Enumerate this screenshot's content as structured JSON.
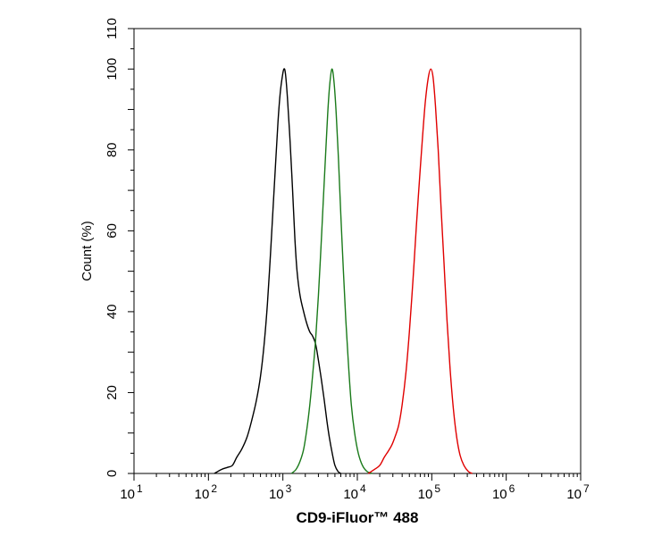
{
  "chart_data": {
    "type": "line",
    "xlabel": "CD9-iFluor™ 488",
    "ylabel": "Count  (%)",
    "x_scale": "log",
    "xlim": [
      10,
      10000000
    ],
    "ylim": [
      0,
      110
    ],
    "x_ticks": [
      {
        "value": 10,
        "base": "10",
        "exp": "1"
      },
      {
        "value": 100,
        "base": "10",
        "exp": "2"
      },
      {
        "value": 1000,
        "base": "10",
        "exp": "3"
      },
      {
        "value": 10000,
        "base": "10",
        "exp": "4"
      },
      {
        "value": 100000,
        "base": "10",
        "exp": "5"
      },
      {
        "value": 1000000,
        "base": "10",
        "exp": "6"
      },
      {
        "value": 10000000,
        "base": "10",
        "exp": "7"
      }
    ],
    "y_ticks": [
      {
        "value": 0,
        "label": "0"
      },
      {
        "value": 20,
        "label": "20"
      },
      {
        "value": 40,
        "label": "40"
      },
      {
        "value": 60,
        "label": "60"
      },
      {
        "value": 80,
        "label": "80"
      },
      {
        "value": 100,
        "label": "100"
      },
      {
        "value": 110,
        "label": "110"
      }
    ],
    "grid": false,
    "series": [
      {
        "color": "#000000",
        "points": [
          [
            120,
            0
          ],
          [
            150,
            1
          ],
          [
            180,
            1.5
          ],
          [
            210,
            2
          ],
          [
            240,
            4
          ],
          [
            280,
            6
          ],
          [
            330,
            9
          ],
          [
            380,
            13
          ],
          [
            440,
            18
          ],
          [
            500,
            24
          ],
          [
            560,
            32
          ],
          [
            620,
            42
          ],
          [
            680,
            54
          ],
          [
            740,
            66
          ],
          [
            800,
            77
          ],
          [
            860,
            87
          ],
          [
            920,
            94
          ],
          [
            980,
            98
          ],
          [
            1030,
            100
          ],
          [
            1080,
            99
          ],
          [
            1150,
            93
          ],
          [
            1250,
            82
          ],
          [
            1350,
            70
          ],
          [
            1450,
            58
          ],
          [
            1550,
            50
          ],
          [
            1700,
            44
          ],
          [
            1900,
            40
          ],
          [
            2100,
            37
          ],
          [
            2300,
            35
          ],
          [
            2500,
            34
          ],
          [
            2750,
            32
          ],
          [
            3000,
            28
          ],
          [
            3300,
            23
          ],
          [
            3600,
            18
          ],
          [
            3900,
            13
          ],
          [
            4200,
            9
          ],
          [
            4600,
            5
          ],
          [
            5000,
            2
          ],
          [
            5500,
            0.5
          ],
          [
            6000,
            0
          ]
        ]
      },
      {
        "color": "#1a7a1a",
        "points": [
          [
            1300,
            0
          ],
          [
            1500,
            1
          ],
          [
            1700,
            3
          ],
          [
            1900,
            6
          ],
          [
            2100,
            11
          ],
          [
            2300,
            17
          ],
          [
            2500,
            24
          ],
          [
            2750,
            33
          ],
          [
            3000,
            44
          ],
          [
            3250,
            56
          ],
          [
            3500,
            68
          ],
          [
            3750,
            79
          ],
          [
            4000,
            89
          ],
          [
            4250,
            96
          ],
          [
            4550,
            100
          ],
          [
            4850,
            97
          ],
          [
            5200,
            89
          ],
          [
            5600,
            77
          ],
          [
            6000,
            64
          ],
          [
            6500,
            50
          ],
          [
            7000,
            38
          ],
          [
            7600,
            27
          ],
          [
            8300,
            17
          ],
          [
            9200,
            10
          ],
          [
            10300,
            5
          ],
          [
            11700,
            2
          ],
          [
            13500,
            0.5
          ],
          [
            16000,
            0
          ]
        ]
      },
      {
        "color": "#e00000",
        "points": [
          [
            14000,
            0
          ],
          [
            17000,
            1
          ],
          [
            20000,
            2
          ],
          [
            23000,
            4
          ],
          [
            26000,
            5.5
          ],
          [
            29000,
            7
          ],
          [
            32000,
            9
          ],
          [
            36000,
            12
          ],
          [
            40000,
            17
          ],
          [
            45000,
            25
          ],
          [
            50000,
            35
          ],
          [
            56000,
            48
          ],
          [
            62000,
            61
          ],
          [
            68000,
            72
          ],
          [
            75000,
            83
          ],
          [
            82000,
            92
          ],
          [
            90000,
            98
          ],
          [
            97000,
            100
          ],
          [
            104000,
            98
          ],
          [
            112000,
            91
          ],
          [
            122000,
            80
          ],
          [
            133000,
            66
          ],
          [
            146000,
            52
          ],
          [
            160000,
            38
          ],
          [
            176000,
            26
          ],
          [
            195000,
            16
          ],
          [
            216000,
            9
          ],
          [
            240000,
            4.5
          ],
          [
            270000,
            2
          ],
          [
            310000,
            0.5
          ],
          [
            350000,
            0
          ]
        ]
      }
    ]
  }
}
